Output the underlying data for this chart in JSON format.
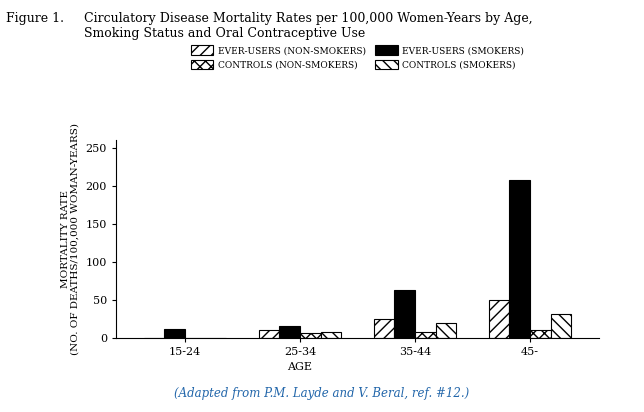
{
  "title_fig": "Figure 1.",
  "title_text": "Circulatory Disease Mortality Rates per 100,000 Women-Years by Age,\nSmoking Status and Oral Contraceptive Use",
  "caption": "(Adapted from P.M. Layde and V. Beral, ref. #12.)",
  "age_groups": [
    "15-24",
    "25-34",
    "35-44",
    "45-"
  ],
  "series": {
    "ever_users_non_smokers": [
      0,
      10,
      25,
      50
    ],
    "controls_non_smokers": [
      0,
      7,
      8,
      10
    ],
    "ever_users_smokers": [
      12,
      15,
      63,
      208
    ],
    "controls_smokers": [
      0,
      8,
      20,
      32
    ]
  },
  "ylabel": "MORTALITY RATE\n(NO. OF DEATHS/100,000 WOMAN-YEARS)",
  "xlabel": "AGE",
  "ylim": [
    0,
    260
  ],
  "yticks": [
    0,
    50,
    100,
    150,
    200,
    250
  ],
  "legend_labels": [
    "EVER-USERS (NON-SMOKERS)",
    "CONTROLS (NON-SMOKERS)",
    "EVER-USERS (SMOKERS)",
    "CONTROLS (SMOKERS)"
  ],
  "bar_width": 0.18,
  "background_color": "#ffffff"
}
